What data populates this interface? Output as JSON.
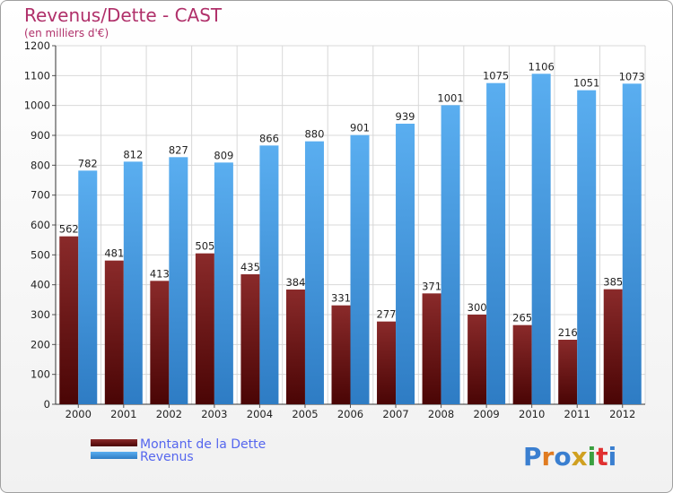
{
  "chart_data": {
    "type": "bar",
    "title": "Revenus/Dette - CAST",
    "subtitle": "(en milliers d'€)",
    "categories": [
      "2000",
      "2001",
      "2002",
      "2003",
      "2004",
      "2005",
      "2006",
      "2007",
      "2008",
      "2009",
      "2010",
      "2011",
      "2012"
    ],
    "series": [
      {
        "name": "Montant de la Dette",
        "color": "#7a1a1a",
        "values": [
          562,
          481,
          413,
          505,
          435,
          384,
          331,
          277,
          371,
          300,
          265,
          216,
          385
        ]
      },
      {
        "name": "Revenus",
        "color": "#4a9de0",
        "values": [
          782,
          812,
          827,
          809,
          866,
          880,
          901,
          939,
          1001,
          1075,
          1106,
          1051,
          1073
        ]
      }
    ],
    "ylim": [
      0,
      1200
    ],
    "yticks": [
      0,
      100,
      200,
      300,
      400,
      500,
      600,
      700,
      800,
      900,
      1000,
      1100,
      1200
    ],
    "grid": true,
    "legend": "bottom-left",
    "logo_text": "Proxiti",
    "logo_colors": [
      "#3a7fd0",
      "#e07b20",
      "#3a7fd0",
      "#d0a020",
      "#3aa040",
      "#e03030",
      "#3a7fd0"
    ]
  }
}
